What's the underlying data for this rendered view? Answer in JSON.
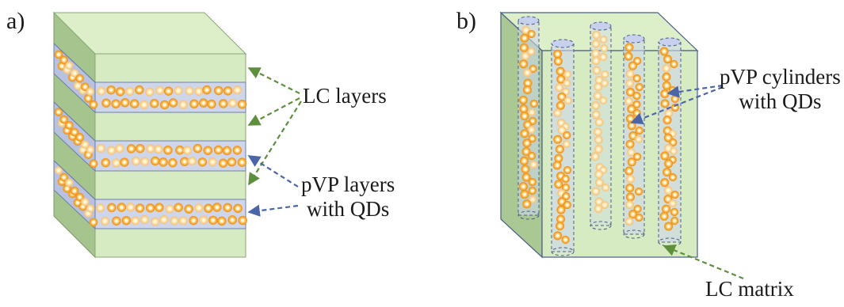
{
  "panels": {
    "a": {
      "letter": "a)",
      "label_lc_layers": "LC layers",
      "label_pvp": {
        "line1": "pVP layers",
        "line2": "with QDs"
      }
    },
    "b": {
      "letter": "b)",
      "label_pvp": {
        "line1": "pVP cylinders",
        "line2": "with QDs"
      },
      "label_lc_matrix": "LC matrix"
    }
  },
  "colors": {
    "lc_front": "#d7ebc3",
    "lc_top": "#dcefc9",
    "lc_side": "#a6c58e",
    "pvp_front": "#cfd6ea",
    "pvp_side": "#b7c1dd",
    "edge": "#4a5c88",
    "qd_outer": "#f5a42b",
    "qd_inner": "#ffe7a8",
    "arrow_green": "#5e8f3c",
    "arrow_blue": "#4a66a8"
  }
}
